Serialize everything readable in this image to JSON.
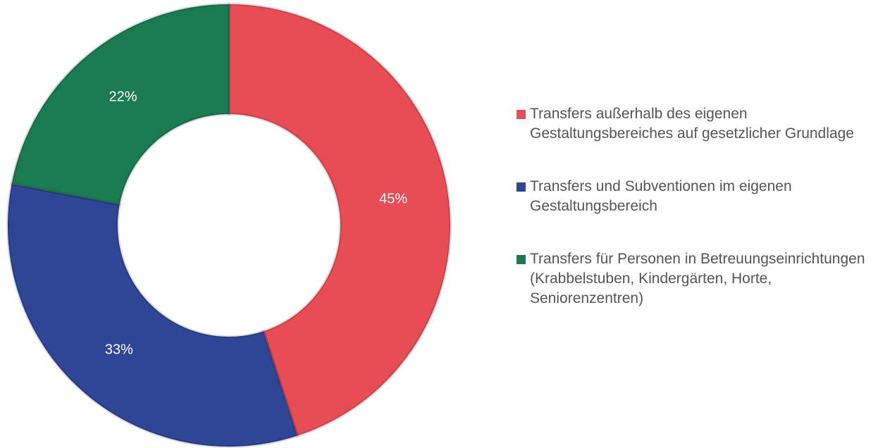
{
  "chart_data": {
    "type": "donut",
    "categories": [
      "Transfers außerhalb des eigenen Gestaltungsbereiches auf gesetzlicher Grundlage",
      "Transfers und Subventionen im eigenen Gestaltungsbereich",
      "Transfers für Personen in Betreuungseinrichtungen (Krabbelstuben, Kindergärten, Horte, Seniorenzentren)"
    ],
    "values": [
      45,
      33,
      22
    ],
    "value_labels": [
      "45%",
      "33%",
      "22%"
    ],
    "colors": [
      "#e84c55",
      "#2f4596",
      "#1b7b50"
    ],
    "legend": "right"
  }
}
